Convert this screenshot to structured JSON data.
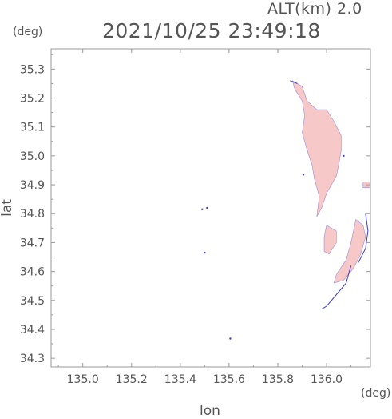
{
  "header": {
    "altitude": "ALT(km) 2.0",
    "timestamp": "2021/10/25 23:49:18"
  },
  "units": {
    "x": "(deg)",
    "y": "(deg)"
  },
  "chart_data": {
    "type": "heatmap",
    "title": "2021/10/25 23:49:18",
    "subtitle": "ALT(km) 2.0",
    "xlabel": "lon",
    "ylabel": "lat",
    "xlim": [
      134.87,
      136.18
    ],
    "ylim": [
      34.27,
      35.37
    ],
    "x_ticks": [
      135.0,
      135.2,
      135.4,
      135.6,
      135.8,
      136.0
    ],
    "x_tick_labels": [
      "135.0",
      "135.2",
      "135.4",
      "135.6",
      "135.8",
      "136.0"
    ],
    "y_ticks": [
      34.3,
      34.4,
      34.5,
      34.6,
      34.7,
      34.8,
      34.9,
      35.0,
      35.1,
      35.2,
      35.3
    ],
    "y_tick_labels": [
      "34.3",
      "34.4",
      "34.5",
      "34.6",
      "34.7",
      "34.8",
      "34.9",
      "35.0",
      "35.1",
      "35.2",
      "35.3"
    ],
    "grid": false,
    "colors": {
      "echo_main": "#f6c8c8",
      "echo_dark": "#eeaaaa",
      "edge": "#3a3acc",
      "axis": "#999999"
    },
    "regions": [
      {
        "name": "main",
        "polygon": [
          [
            135.86,
            35.26
          ],
          [
            135.9,
            35.24
          ],
          [
            135.92,
            35.19
          ],
          [
            135.96,
            35.16
          ],
          [
            136.0,
            35.16
          ],
          [
            136.03,
            35.12
          ],
          [
            136.06,
            35.07
          ],
          [
            136.06,
            35.02
          ],
          [
            136.05,
            34.97
          ],
          [
            136.04,
            34.93
          ],
          [
            136.02,
            34.9
          ],
          [
            136.0,
            34.87
          ],
          [
            135.98,
            34.82
          ],
          [
            135.96,
            34.79
          ],
          [
            135.97,
            34.86
          ],
          [
            135.95,
            34.92
          ],
          [
            135.94,
            34.97
          ],
          [
            135.92,
            35.02
          ],
          [
            135.9,
            35.08
          ],
          [
            135.91,
            35.14
          ],
          [
            135.9,
            35.19
          ],
          [
            135.87,
            35.23
          ]
        ]
      },
      {
        "name": "south",
        "polygon": [
          [
            136.12,
            34.78
          ],
          [
            136.15,
            34.76
          ],
          [
            136.16,
            34.72
          ],
          [
            136.14,
            34.66
          ],
          [
            136.11,
            34.61
          ],
          [
            136.07,
            34.57
          ],
          [
            136.03,
            34.56
          ],
          [
            136.04,
            34.59
          ],
          [
            136.08,
            34.64
          ],
          [
            136.1,
            34.7
          ]
        ]
      },
      {
        "name": "mid",
        "polygon": [
          [
            136.0,
            34.76
          ],
          [
            136.04,
            34.74
          ],
          [
            136.04,
            34.7
          ],
          [
            136.01,
            34.66
          ],
          [
            135.99,
            34.67
          ],
          [
            135.99,
            34.72
          ]
        ]
      },
      {
        "name": "edge-right",
        "polygon": [
          [
            136.15,
            34.91
          ],
          [
            136.18,
            34.91
          ],
          [
            136.18,
            34.89
          ],
          [
            136.15,
            34.89
          ]
        ]
      }
    ],
    "edges": [
      [
        [
          136.1,
          34.62
        ],
        [
          136.08,
          34.56
        ],
        [
          136.04,
          34.52
        ],
        [
          136.0,
          34.48
        ],
        [
          135.98,
          34.47
        ]
      ],
      [
        [
          136.16,
          34.8
        ],
        [
          136.17,
          34.74
        ],
        [
          136.16,
          34.68
        ],
        [
          136.13,
          34.63
        ]
      ],
      [
        [
          135.88,
          35.25
        ],
        [
          135.85,
          35.26
        ]
      ]
    ],
    "specks": [
      [
        135.51,
        34.82
      ],
      [
        135.49,
        34.815
      ],
      [
        135.5,
        34.665
      ],
      [
        135.605,
        34.368
      ],
      [
        135.905,
        34.935
      ],
      [
        136.07,
        35.0
      ]
    ]
  }
}
